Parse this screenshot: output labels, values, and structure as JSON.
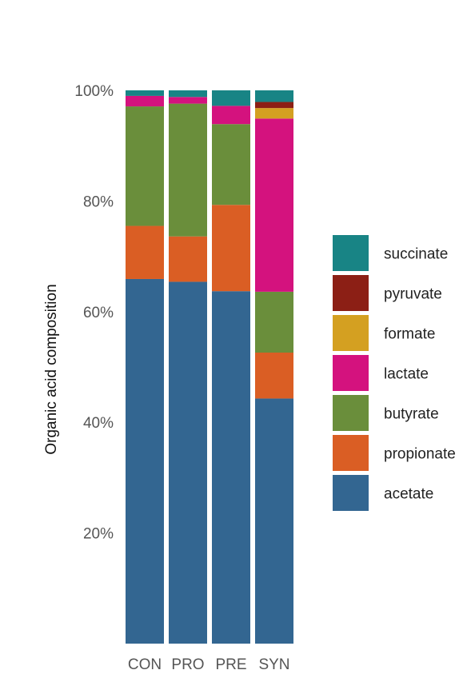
{
  "chart_data": {
    "type": "bar",
    "stacked": true,
    "ylabel": "Organic acid composition",
    "xlabel": "",
    "ylim": [
      0,
      100
    ],
    "yticks": [
      20,
      40,
      60,
      80,
      100
    ],
    "ytick_labels": [
      "20%",
      "40%",
      "60%",
      "80%",
      "100%"
    ],
    "categories": [
      "CON",
      "PRO",
      "PRE",
      "SYN"
    ],
    "legend_position": "right",
    "grid": false,
    "series": [
      {
        "name": "acetate",
        "color": "#336691",
        "values": [
          65.9,
          65.4,
          63.7,
          44.3
        ]
      },
      {
        "name": "propionate",
        "color": "#DA5E24",
        "values": [
          9.6,
          8.2,
          15.6,
          8.3
        ]
      },
      {
        "name": "butyrate",
        "color": "#6A8E3B",
        "values": [
          21.6,
          24.0,
          14.6,
          11.0
        ]
      },
      {
        "name": "lactate",
        "color": "#D4127E",
        "values": [
          1.9,
          1.2,
          3.3,
          31.3
        ]
      },
      {
        "name": "formate",
        "color": "#D4A021",
        "values": [
          0,
          0,
          0,
          1.9
        ]
      },
      {
        "name": "pyruvate",
        "color": "#8C1F15",
        "values": [
          0,
          0,
          0,
          1.1
        ]
      },
      {
        "name": "succinate",
        "color": "#188485",
        "values": [
          1.0,
          1.2,
          2.8,
          2.1
        ]
      }
    ],
    "legend_order": [
      "succinate",
      "pyruvate",
      "formate",
      "lactate",
      "butyrate",
      "propionate",
      "acetate"
    ]
  }
}
